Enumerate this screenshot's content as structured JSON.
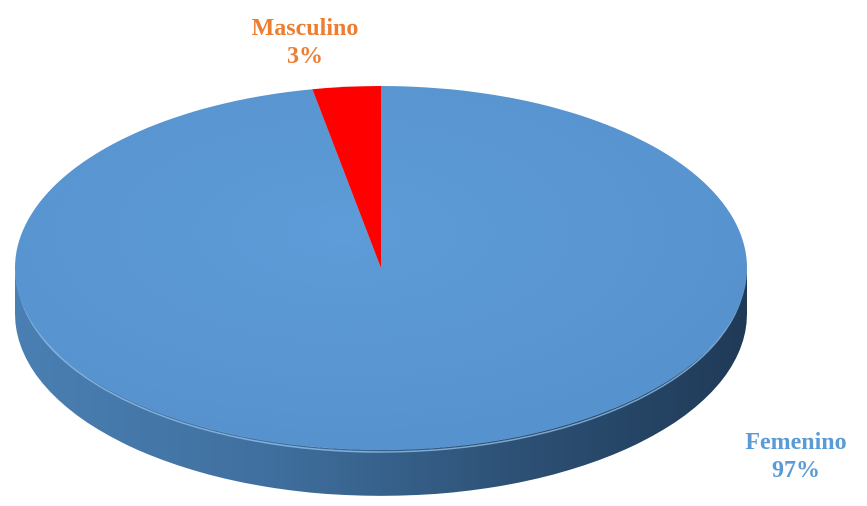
{
  "chart_data": {
    "type": "pie",
    "style": "3d",
    "title": "",
    "slices": [
      {
        "label": "Femenino",
        "value": 97,
        "display": "97%",
        "color": "#5B9BD5",
        "label_color": "#5B9BD5"
      },
      {
        "label": "Masculino",
        "value": 3,
        "display": "3%",
        "color": "#FF0000",
        "label_color": "#ED7D31"
      }
    ],
    "legend": "none"
  }
}
